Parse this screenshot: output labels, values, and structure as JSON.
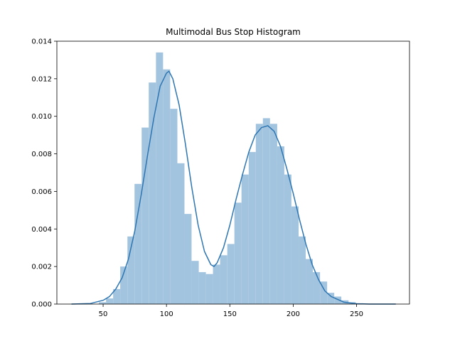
{
  "chart_data": {
    "type": "bar",
    "title": "Multimodal Bus Stop Histogram",
    "xlabel": "",
    "ylabel": "",
    "xlim": [
      13.5,
      291.8
    ],
    "ylim": [
      0,
      0.014
    ],
    "x_ticks": [
      50,
      100,
      150,
      200,
      250
    ],
    "y_ticks": [
      0.0,
      0.002,
      0.004,
      0.006,
      0.008,
      0.01,
      0.012,
      0.014
    ],
    "y_tick_labels": [
      "0.000",
      "0.002",
      "0.004",
      "0.006",
      "0.008",
      "0.010",
      "0.012",
      "0.014"
    ],
    "grid": false,
    "bar_color": "#a3c4df",
    "line_color": "#2e76b2",
    "histogram": {
      "bin_edges": [
        46.6,
        52.3,
        57.9,
        63.5,
        69.2,
        74.8,
        80.4,
        86.0,
        91.7,
        97.3,
        102.9,
        108.6,
        114.2,
        119.8,
        125.5,
        131.1,
        136.7,
        142.3,
        148.0,
        153.6,
        159.2,
        164.9,
        170.5,
        176.1,
        181.7,
        187.4,
        193.0,
        198.6,
        204.3,
        209.9,
        215.5,
        221.2,
        226.8,
        232.4,
        238.0,
        243.7,
        249.3
      ],
      "density": [
        0.0001,
        0.0003,
        0.0008,
        0.002,
        0.0036,
        0.0064,
        0.0094,
        0.0118,
        0.0134,
        0.0125,
        0.0104,
        0.0075,
        0.0048,
        0.0023,
        0.0017,
        0.0016,
        0.0021,
        0.0026,
        0.0032,
        0.0054,
        0.0069,
        0.0081,
        0.0096,
        0.0099,
        0.0096,
        0.0084,
        0.0069,
        0.0052,
        0.0036,
        0.0024,
        0.0017,
        0.0012,
        0.0006,
        0.0004,
        0.0002,
        0.0001
      ]
    },
    "kde": {
      "x": [
        25,
        40,
        50,
        55,
        60,
        65,
        70,
        75,
        80,
        85,
        90,
        95,
        100,
        102,
        105,
        110,
        115,
        120,
        125,
        130,
        135,
        137.5,
        140,
        145,
        150,
        155,
        160,
        165,
        170,
        175,
        180,
        185,
        190,
        195,
        200,
        205,
        210,
        215,
        220,
        225,
        230,
        240,
        250,
        260,
        281
      ],
      "y": [
        0.0,
        3e-05,
        0.0002,
        0.0004,
        0.0008,
        0.0014,
        0.0024,
        0.0039,
        0.0058,
        0.0079,
        0.0099,
        0.0116,
        0.0123,
        0.0124,
        0.012,
        0.0106,
        0.0085,
        0.0062,
        0.0042,
        0.0028,
        0.0021,
        0.002,
        0.0022,
        0.003,
        0.0042,
        0.0056,
        0.0069,
        0.0081,
        0.009,
        0.0094,
        0.0095,
        0.0092,
        0.0084,
        0.0072,
        0.0059,
        0.0045,
        0.0032,
        0.0021,
        0.0013,
        0.0007,
        0.0004,
        0.0001,
        2e-05,
        0.0,
        0.0
      ]
    }
  }
}
